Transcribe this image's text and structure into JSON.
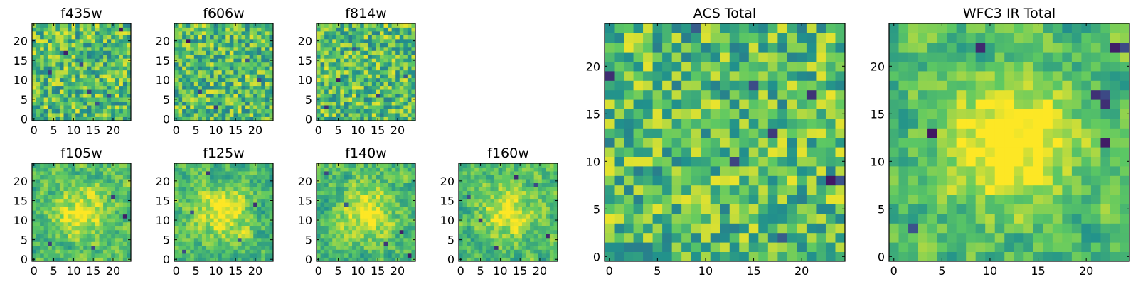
{
  "figure": {
    "colormap": [
      "#440154",
      "#3b528b",
      "#21918c",
      "#5ec962",
      "#fde725"
    ]
  },
  "chart_data": [
    {
      "id": "f435w",
      "type": "heatmap",
      "title": "f435w",
      "grid_size": [
        25,
        25
      ],
      "xlim": [
        0,
        24
      ],
      "ylim": [
        0,
        24
      ],
      "xticks": [
        0,
        5,
        10,
        15,
        20
      ],
      "yticks": [
        0,
        5,
        10,
        15,
        20
      ],
      "values_note": "",
      "seed": 11,
      "smooth": 0,
      "center_boost": 0.0,
      "hot": [
        [
          12,
          14
        ],
        [
          19,
          6
        ],
        [
          22,
          23
        ],
        [
          16,
          4
        ],
        [
          4,
          12
        ],
        [
          8,
          17
        ],
        [
          14,
          7
        ]
      ]
    },
    {
      "id": "f606w",
      "type": "heatmap",
      "title": "f606w",
      "grid_size": [
        25,
        25
      ],
      "xlim": [
        0,
        24
      ],
      "ylim": [
        0,
        24
      ],
      "xticks": [
        0,
        5,
        10,
        15,
        20
      ],
      "yticks": [
        0,
        5,
        10,
        15,
        20
      ],
      "values_note": "",
      "seed": 23,
      "smooth": 0,
      "center_boost": 0.0,
      "hot": [
        [
          3,
          20
        ],
        [
          10,
          3
        ],
        [
          18,
          15
        ],
        [
          6,
          7
        ],
        [
          21,
          10
        ]
      ]
    },
    {
      "id": "f814w",
      "type": "heatmap",
      "title": "f814w",
      "grid_size": [
        25,
        25
      ],
      "xlim": [
        0,
        24
      ],
      "ylim": [
        0,
        24
      ],
      "xticks": [
        0,
        5,
        10,
        15,
        20
      ],
      "yticks": [
        0,
        5,
        10,
        15,
        20
      ],
      "values_note": "",
      "seed": 37,
      "smooth": 0,
      "center_boost": 0.0,
      "hot": [
        [
          2,
          3
        ],
        [
          15,
          6
        ],
        [
          22,
          11
        ],
        [
          9,
          18
        ],
        [
          5,
          10
        ]
      ]
    },
    {
      "id": "f105w",
      "type": "heatmap",
      "title": "f105w",
      "grid_size": [
        25,
        25
      ],
      "xlim": [
        0,
        24
      ],
      "ylim": [
        0,
        24
      ],
      "xticks": [
        0,
        5,
        10,
        15,
        20
      ],
      "yticks": [
        0,
        5,
        10,
        15,
        20
      ],
      "values_note": "",
      "seed": 41,
      "smooth": 1,
      "center_boost": 0.35,
      "hot": [
        [
          20,
          16
        ],
        [
          23,
          11
        ],
        [
          4,
          4
        ],
        [
          15,
          3
        ]
      ]
    },
    {
      "id": "f125w",
      "type": "heatmap",
      "title": "f125w",
      "grid_size": [
        25,
        25
      ],
      "xlim": [
        0,
        24
      ],
      "ylim": [
        0,
        24
      ],
      "xticks": [
        0,
        5,
        10,
        15,
        20
      ],
      "yticks": [
        0,
        5,
        10,
        15,
        20
      ],
      "values_note": "",
      "seed": 53,
      "smooth": 1,
      "center_boost": 0.35,
      "hot": [
        [
          4,
          12
        ],
        [
          16,
          5
        ],
        [
          20,
          14
        ],
        [
          8,
          22
        ],
        [
          2,
          2
        ]
      ]
    },
    {
      "id": "f140w",
      "type": "heatmap",
      "title": "f140w",
      "grid_size": [
        25,
        25
      ],
      "xlim": [
        0,
        24
      ],
      "ylim": [
        0,
        24
      ],
      "xticks": [
        0,
        5,
        10,
        15,
        20
      ],
      "yticks": [
        0,
        5,
        10,
        15,
        20
      ],
      "values_note": "",
      "seed": 67,
      "smooth": 1,
      "center_boost": 0.35,
      "hot": [
        [
          21,
          7
        ],
        [
          7,
          14
        ],
        [
          17,
          4
        ],
        [
          2,
          22
        ],
        [
          23,
          1
        ]
      ]
    },
    {
      "id": "f160w",
      "type": "heatmap",
      "title": "f160w",
      "grid_size": [
        25,
        25
      ],
      "xlim": [
        0,
        24
      ],
      "ylim": [
        0,
        24
      ],
      "xticks": [
        0,
        5,
        10,
        15,
        20
      ],
      "yticks": [
        0,
        5,
        10,
        15,
        20
      ],
      "values_note": "",
      "seed": 79,
      "smooth": 1,
      "center_boost": 0.35,
      "hot": [
        [
          5,
          10
        ],
        [
          19,
          19
        ],
        [
          22,
          6
        ],
        [
          9,
          3
        ],
        [
          14,
          21
        ],
        [
          2,
          16
        ]
      ]
    },
    {
      "id": "acs_total",
      "type": "heatmap",
      "title": "ACS Total",
      "grid_size": [
        25,
        25
      ],
      "xlim": [
        0,
        24
      ],
      "ylim": [
        0,
        24
      ],
      "xticks": [
        0,
        5,
        10,
        15,
        20
      ],
      "yticks": [
        0,
        5,
        10,
        15,
        20
      ],
      "values_note": "",
      "seed": 97,
      "smooth": 0,
      "center_boost": 0.0,
      "hot": [
        [
          9,
          24
        ],
        [
          0,
          19
        ],
        [
          18,
          2
        ],
        [
          17,
          13
        ],
        [
          23,
          8
        ],
        [
          24,
          8
        ],
        [
          21,
          17
        ],
        [
          15,
          18
        ],
        [
          13,
          10
        ]
      ]
    },
    {
      "id": "wfc3_ir_total",
      "type": "heatmap",
      "title": "WFC3 IR Total",
      "grid_size": [
        25,
        25
      ],
      "xlim": [
        0,
        24
      ],
      "ylim": [
        0,
        24
      ],
      "xticks": [
        0,
        5,
        10,
        15,
        20
      ],
      "yticks": [
        0,
        5,
        10,
        15,
        20
      ],
      "values_note": "",
      "seed": 113,
      "smooth": 1,
      "center_boost": 0.45,
      "hot": [
        [
          21,
          17
        ],
        [
          22,
          17
        ],
        [
          22,
          16
        ],
        [
          23,
          22
        ],
        [
          24,
          22
        ],
        [
          4,
          13
        ],
        [
          22,
          12
        ],
        [
          2,
          3
        ],
        [
          9,
          22
        ]
      ]
    }
  ]
}
